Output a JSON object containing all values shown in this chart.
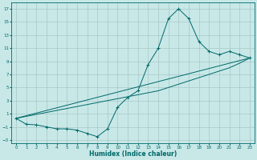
{
  "xlabel": "Humidex (Indice chaleur)",
  "background_color": "#c8e8e8",
  "grid_color": "#a8c8c8",
  "line_color": "#006868",
  "xlim": [
    -0.5,
    23.5
  ],
  "ylim": [
    -3.5,
    18
  ],
  "xticks": [
    0,
    1,
    2,
    3,
    4,
    5,
    6,
    7,
    8,
    9,
    10,
    11,
    12,
    13,
    14,
    15,
    16,
    17,
    18,
    19,
    20,
    21,
    22,
    23
  ],
  "yticks": [
    -3,
    -1,
    1,
    3,
    5,
    7,
    9,
    11,
    13,
    15,
    17
  ],
  "line1_x": [
    0,
    1,
    2,
    3,
    4,
    5,
    6,
    7,
    8,
    9,
    10,
    11,
    12,
    13,
    14,
    15,
    16,
    17,
    18,
    19,
    20,
    21,
    22,
    23
  ],
  "line1_y": [
    0.3,
    -0.6,
    -0.7,
    -1.0,
    -1.3,
    -1.3,
    -1.5,
    -2.0,
    -2.5,
    -1.3,
    2.0,
    3.5,
    4.5,
    8.5,
    11.0,
    15.5,
    17.0,
    15.5,
    12.0,
    10.5,
    10.0,
    10.5,
    10.0,
    9.5
  ],
  "line2_x": [
    0,
    1,
    2,
    3,
    4,
    5,
    6,
    7,
    8,
    9,
    10,
    11,
    12,
    13,
    14,
    15,
    16,
    17,
    18,
    19,
    20,
    21,
    22,
    23
  ],
  "line2_y": [
    0.3,
    0.6,
    0.9,
    1.2,
    1.5,
    1.8,
    2.1,
    2.4,
    2.7,
    3.0,
    3.3,
    3.6,
    3.9,
    4.2,
    4.5,
    5.0,
    5.5,
    6.0,
    6.5,
    7.0,
    7.5,
    8.0,
    8.7,
    9.5
  ],
  "line3_x": [
    0,
    23
  ],
  "line3_y": [
    0.3,
    9.5
  ]
}
